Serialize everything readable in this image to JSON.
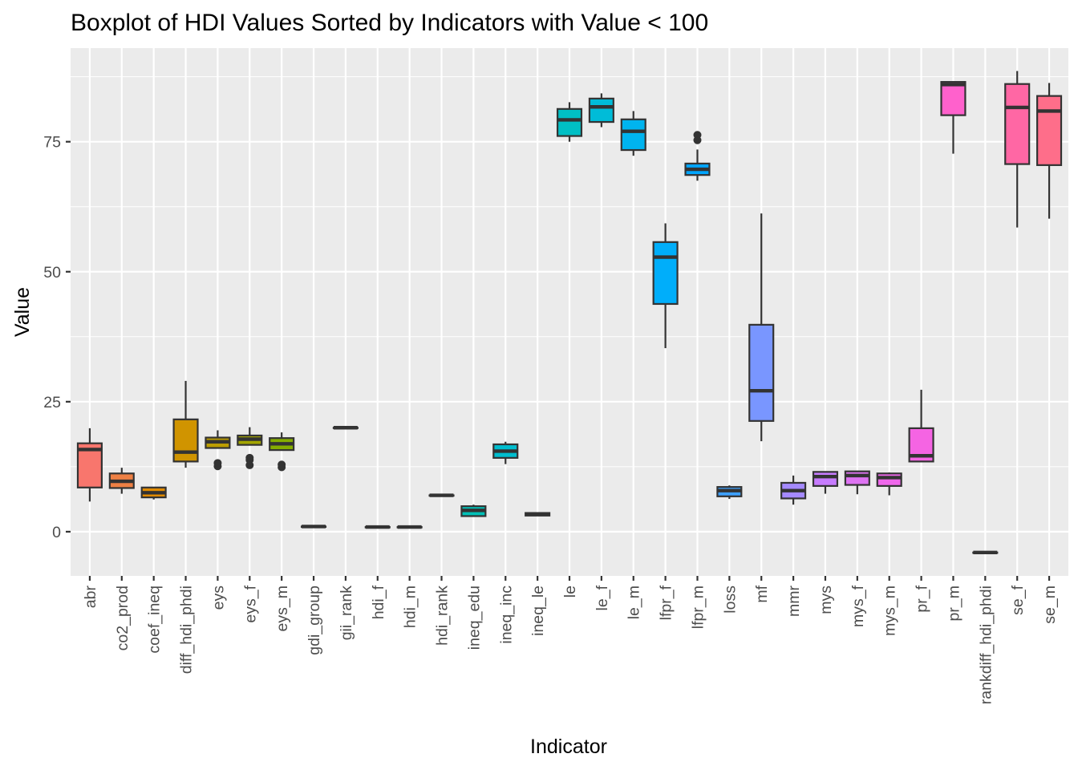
{
  "chart_data": {
    "type": "boxplot",
    "title": "Boxplot of HDI Values Sorted by Indicators with Value < 100",
    "xlabel": "Indicator",
    "ylabel": "Value",
    "ylim": [
      -8.5,
      93
    ],
    "yticks": [
      0,
      25,
      50,
      75
    ],
    "grid": true,
    "legend": "none",
    "colors": {
      "panel_background": "#ebebeb",
      "grid_major": "#ffffff",
      "box_outline": "#333333",
      "tick_text": "#4d4d4d"
    },
    "categories": [
      "abr",
      "co2_prod",
      "coef_ineq",
      "diff_hdi_phdi",
      "eys",
      "eys_f",
      "eys_m",
      "gdi_group",
      "gii_rank",
      "hdi_f",
      "hdi_m",
      "hdi_rank",
      "ineq_edu",
      "ineq_inc",
      "ineq_le",
      "le",
      "le_f",
      "le_m",
      "lfpr_f",
      "lfpr_m",
      "loss",
      "mf",
      "mmr",
      "mys",
      "mys_f",
      "mys_m",
      "pr_f",
      "pr_m",
      "rankdiff_hdi_phdi",
      "se_f",
      "se_m"
    ],
    "series": [
      {
        "category": "abr",
        "color": "#F8766D",
        "min": 5.8,
        "q1": 8.5,
        "median": 15.8,
        "q3": 17.0,
        "max": 19.9,
        "outliers": []
      },
      {
        "category": "co2_prod",
        "color": "#EE8044",
        "min": 7.3,
        "q1": 8.4,
        "median": 9.7,
        "q3": 11.2,
        "max": 12.3,
        "outliers": []
      },
      {
        "category": "coef_ineq",
        "color": "#E08A00",
        "min": 6.2,
        "q1": 6.6,
        "median": 7.5,
        "q3": 8.5,
        "max": 8.5,
        "outliers": []
      },
      {
        "category": "diff_hdi_phdi",
        "color": "#D09400",
        "min": 12.3,
        "q1": 13.5,
        "median": 15.3,
        "q3": 21.6,
        "max": 29.0,
        "outliers": []
      },
      {
        "category": "eys",
        "color": "#BC9D00",
        "min": 16.1,
        "q1": 16.1,
        "median": 17.3,
        "q3": 18.1,
        "max": 19.5,
        "outliers": [
          12.6,
          13.2
        ]
      },
      {
        "category": "eys_f",
        "color": "#A3A500",
        "min": 16.7,
        "q1": 16.7,
        "median": 17.8,
        "q3": 18.5,
        "max": 20.1,
        "outliers": [
          12.8,
          13.8,
          14.2
        ]
      },
      {
        "category": "eys_m",
        "color": "#85AD00",
        "min": 15.7,
        "q1": 15.7,
        "median": 16.9,
        "q3": 18.0,
        "max": 19.1,
        "outliers": [
          12.4,
          12.9
        ]
      },
      {
        "category": "gdi_group",
        "color": "#5BB300",
        "min": 1,
        "q1": 1,
        "median": 1,
        "q3": 1,
        "max": 1,
        "outliers": []
      },
      {
        "category": "gii_rank",
        "color": "#00B81F",
        "min": 20,
        "q1": 20,
        "median": 20,
        "q3": 20,
        "max": 20,
        "outliers": []
      },
      {
        "category": "hdi_f",
        "color": "#00BC59",
        "min": 0.9,
        "q1": 0.9,
        "median": 0.9,
        "q3": 0.9,
        "max": 0.9,
        "outliers": []
      },
      {
        "category": "hdi_m",
        "color": "#00BF7D",
        "min": 0.9,
        "q1": 0.9,
        "median": 0.9,
        "q3": 0.9,
        "max": 0.9,
        "outliers": []
      },
      {
        "category": "hdi_rank",
        "color": "#00C19A",
        "min": 7,
        "q1": 7,
        "median": 7,
        "q3": 7,
        "max": 7,
        "outliers": []
      },
      {
        "category": "ineq_edu",
        "color": "#00C0B6",
        "min": 2.9,
        "q1": 3.0,
        "median": 4.1,
        "q3": 4.9,
        "max": 5.2,
        "outliers": []
      },
      {
        "category": "ineq_inc",
        "color": "#00BDCE",
        "min": 13.0,
        "q1": 14.2,
        "median": 15.5,
        "q3": 16.8,
        "max": 17.3,
        "outliers": []
      },
      {
        "category": "ineq_le",
        "color": "#00B8E5",
        "min": 3.1,
        "q1": 3.1,
        "median": 3.4,
        "q3": 3.6,
        "max": 3.6,
        "outliers": []
      },
      {
        "category": "le",
        "color": "#00BFC4",
        "min": 75.0,
        "q1": 76.1,
        "median": 79.2,
        "q3": 81.3,
        "max": 82.6,
        "outliers": []
      },
      {
        "category": "le_f",
        "color": "#00BCD8",
        "min": 77.8,
        "q1": 78.8,
        "median": 81.7,
        "q3": 83.3,
        "max": 84.3,
        "outliers": []
      },
      {
        "category": "le_m",
        "color": "#00B4EF",
        "min": 72.3,
        "q1": 73.4,
        "median": 77.0,
        "q3": 79.3,
        "max": 80.9,
        "outliers": []
      },
      {
        "category": "lfpr_f",
        "color": "#00AEFA",
        "min": 35.3,
        "q1": 43.8,
        "median": 52.8,
        "q3": 55.7,
        "max": 59.3,
        "outliers": []
      },
      {
        "category": "lfpr_m",
        "color": "#00A5FF",
        "min": 67.5,
        "q1": 68.6,
        "median": 69.7,
        "q3": 70.8,
        "max": 73.5,
        "outliers": [
          75.3,
          76.3
        ]
      },
      {
        "category": "loss",
        "color": "#3DA0FF",
        "min": 6.3,
        "q1": 6.8,
        "median": 7.9,
        "q3": 8.6,
        "max": 8.9,
        "outliers": []
      },
      {
        "category": "mf",
        "color": "#7996FF",
        "min": 17.4,
        "q1": 21.3,
        "median": 27.1,
        "q3": 39.8,
        "max": 61.2,
        "outliers": []
      },
      {
        "category": "mmr",
        "color": "#A58AFF",
        "min": 5.2,
        "q1": 6.4,
        "median": 7.9,
        "q3": 9.4,
        "max": 10.8,
        "outliers": []
      },
      {
        "category": "mys",
        "color": "#C77CFF",
        "min": 7.3,
        "q1": 8.8,
        "median": 10.6,
        "q3": 11.5,
        "max": 11.5,
        "outliers": []
      },
      {
        "category": "mys_f",
        "color": "#DE73F2",
        "min": 7.2,
        "q1": 9.0,
        "median": 10.8,
        "q3": 11.6,
        "max": 11.6,
        "outliers": []
      },
      {
        "category": "mys_m",
        "color": "#EF67EB",
        "min": 7.0,
        "q1": 8.8,
        "median": 10.4,
        "q3": 11.2,
        "max": 11.4,
        "outliers": []
      },
      {
        "category": "pr_f",
        "color": "#F564E3",
        "min": 13.5,
        "q1": 13.5,
        "median": 14.6,
        "q3": 19.9,
        "max": 27.3,
        "outliers": []
      },
      {
        "category": "pr_m",
        "color": "#FF61CC",
        "min": 72.7,
        "q1": 80.1,
        "median": 86.0,
        "q3": 86.5,
        "max": 86.5,
        "outliers": []
      },
      {
        "category": "rankdiff_hdi_phdi",
        "color": "#FF62BC",
        "min": -4,
        "q1": -4,
        "median": -4,
        "q3": -4,
        "max": -4,
        "outliers": []
      },
      {
        "category": "se_f",
        "color": "#FF67A4",
        "min": 58.5,
        "q1": 70.7,
        "median": 81.6,
        "q3": 86.1,
        "max": 88.6,
        "outliers": []
      },
      {
        "category": "se_m",
        "color": "#FE6E8A",
        "min": 60.2,
        "q1": 70.5,
        "median": 80.9,
        "q3": 83.8,
        "max": 86.3,
        "outliers": []
      }
    ]
  }
}
